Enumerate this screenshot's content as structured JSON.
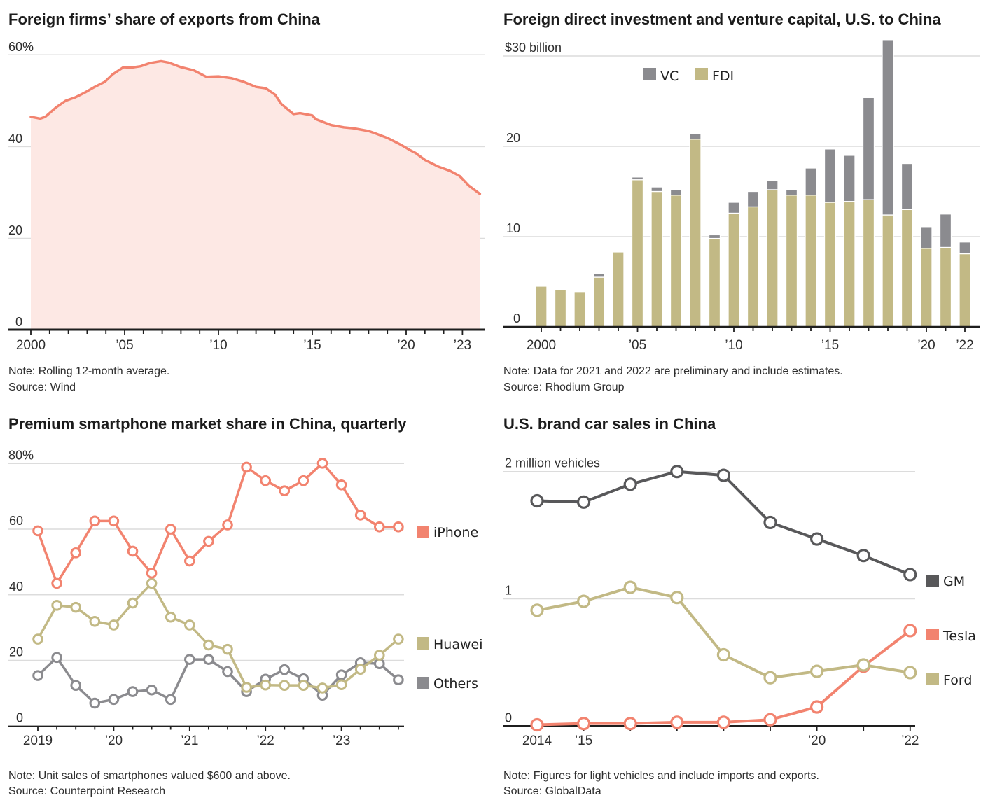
{
  "chart_data": [
    {
      "type": "area",
      "title": "Foreign firms’ share of exports from China",
      "note": "Note: Rolling 12-month average.",
      "source": "Source: Wind",
      "xlabel": "",
      "ylabel": "",
      "xlim": [
        2000,
        2024
      ],
      "ylim": [
        0,
        60
      ],
      "grid": true,
      "yticks": [
        {
          "value": 60,
          "label": "60%"
        },
        {
          "value": 40,
          "label": "40"
        },
        {
          "value": 20,
          "label": "20"
        },
        {
          "value": 0,
          "label": "0"
        }
      ],
      "xticks": [
        {
          "value": 2000,
          "label": "2000"
        },
        {
          "value": 2005,
          "label": "’05"
        },
        {
          "value": 2010,
          "label": "’10"
        },
        {
          "value": 2015,
          "label": "’15"
        },
        {
          "value": 2020,
          "label": "’20"
        },
        {
          "value": 2023,
          "label": "’23"
        }
      ],
      "series": [
        {
          "name": "Foreign firms’ share of exports",
          "color": "#f2836f",
          "fill": "#fde8e4",
          "points": [
            [
              2000.0,
              46.5
            ],
            [
              2000.5,
              46.1
            ],
            [
              2000.77,
              46.5
            ],
            [
              2001.36,
              48.6
            ],
            [
              2001.86,
              50.0
            ],
            [
              2002.35,
              50.7
            ],
            [
              2002.85,
              51.7
            ],
            [
              2003.36,
              52.9
            ],
            [
              2003.94,
              54.1
            ],
            [
              2004.35,
              55.7
            ],
            [
              2004.94,
              57.3
            ],
            [
              2005.35,
              57.2
            ],
            [
              2005.85,
              57.5
            ],
            [
              2006.35,
              58.2
            ],
            [
              2006.94,
              58.6
            ],
            [
              2007.35,
              58.3
            ],
            [
              2008.0,
              57.3
            ],
            [
              2008.69,
              56.6
            ],
            [
              2009.35,
              55.2
            ],
            [
              2010.0,
              55.3
            ],
            [
              2010.69,
              54.9
            ],
            [
              2011.35,
              54.1
            ],
            [
              2012.0,
              53.0
            ],
            [
              2012.52,
              52.7
            ],
            [
              2013.02,
              51.3
            ],
            [
              2013.35,
              49.3
            ],
            [
              2014.0,
              47.1
            ],
            [
              2014.35,
              47.3
            ],
            [
              2015.0,
              46.8
            ],
            [
              2015.18,
              46.0
            ],
            [
              2016.0,
              44.7
            ],
            [
              2016.68,
              44.2
            ],
            [
              2017.18,
              44.0
            ],
            [
              2018.0,
              43.4
            ],
            [
              2018.35,
              42.9
            ],
            [
              2019.0,
              41.9
            ],
            [
              2019.68,
              40.5
            ],
            [
              2020.18,
              39.3
            ],
            [
              2020.51,
              38.6
            ],
            [
              2021.0,
              37.1
            ],
            [
              2021.68,
              35.7
            ],
            [
              2022.35,
              34.7
            ],
            [
              2022.85,
              33.6
            ],
            [
              2023.34,
              31.5
            ],
            [
              2023.93,
              29.7
            ]
          ]
        }
      ]
    },
    {
      "type": "bar",
      "stacked": true,
      "title": "Foreign direct investment and venture capital, U.S. to China",
      "note": "Note: Data for 2021 and 2022 are preliminary and include estimates.",
      "source": "Source: Rhodium Group",
      "xlabel": "",
      "ylabel": "",
      "ylim": [
        0,
        30
      ],
      "grid": true,
      "categories": [
        2000,
        2001,
        2002,
        2003,
        2004,
        2005,
        2006,
        2007,
        2008,
        2009,
        2010,
        2011,
        2012,
        2013,
        2014,
        2015,
        2016,
        2017,
        2018,
        2019,
        2020,
        2021,
        2022
      ],
      "yticks": [
        {
          "value": 30,
          "label": "$30 billion"
        },
        {
          "value": 20,
          "label": "20"
        },
        {
          "value": 10,
          "label": "10"
        },
        {
          "value": 0,
          "label": "0"
        }
      ],
      "xticks": [
        {
          "value": 2000,
          "label": "2000"
        },
        {
          "value": 2005,
          "label": "’05"
        },
        {
          "value": 2010,
          "label": "’10"
        },
        {
          "value": 2015,
          "label": "’15"
        },
        {
          "value": 2020,
          "label": "’20"
        },
        {
          "value": 2022,
          "label": "’22"
        }
      ],
      "legend_position": "top-center",
      "legend": [
        {
          "name": "VC",
          "color": "#8b8b8f"
        },
        {
          "name": "FDI",
          "color": "#c2b985"
        }
      ],
      "series": [
        {
          "name": "FDI",
          "color": "#c2b985",
          "values": [
            4.5,
            4.1,
            3.9,
            5.5,
            8.3,
            16.3,
            15.0,
            14.6,
            20.8,
            9.8,
            12.6,
            13.3,
            15.2,
            14.6,
            14.6,
            13.8,
            13.9,
            14.1,
            12.4,
            13.0,
            8.7,
            8.8,
            8.1
          ]
        },
        {
          "name": "VC",
          "color": "#8b8b8f",
          "values": [
            0,
            0,
            0,
            0.4,
            0,
            0.3,
            0.5,
            0.6,
            0.6,
            0.4,
            1.2,
            1.7,
            1.0,
            0.6,
            3.0,
            5.9,
            5.1,
            11.3,
            19.4,
            5.1,
            2.4,
            3.7,
            1.3
          ]
        }
      ]
    },
    {
      "type": "line",
      "title": "Premium smartphone market share in China, quarterly",
      "note": "Note: Unit sales of smartphones valued $600 and above.",
      "source": "Source: Counterpoint Research",
      "xlabel": "",
      "ylabel": "",
      "ylim": [
        0,
        80
      ],
      "grid": true,
      "categories": [
        "2019 Q1",
        "2019 Q2",
        "2019 Q3",
        "2019 Q4",
        "2020 Q1",
        "2020 Q2",
        "2020 Q3",
        "2020 Q4",
        "2021 Q1",
        "2021 Q2",
        "2021 Q3",
        "2021 Q4",
        "2022 Q1",
        "2022 Q2",
        "2022 Q3",
        "2022 Q4",
        "2023 Q1",
        "2023 Q2",
        "2023 Q3",
        "2023 Q4"
      ],
      "yticks": [
        {
          "value": 80,
          "label": "80%"
        },
        {
          "value": 60,
          "label": "60"
        },
        {
          "value": 40,
          "label": "40"
        },
        {
          "value": 20,
          "label": "20"
        },
        {
          "value": 0,
          "label": "0"
        }
      ],
      "xticks": [
        {
          "value": "2019 Q1",
          "label": "2019"
        },
        {
          "value": "2020 Q1",
          "label": "’20"
        },
        {
          "value": "2021 Q1",
          "label": "’21"
        },
        {
          "value": "2022 Q1",
          "label": "’22"
        },
        {
          "value": "2023 Q1",
          "label": "’23"
        }
      ],
      "legend_position": "right",
      "series": [
        {
          "name": "iPhone",
          "color": "#f2836f",
          "values": [
            59.5,
            43.5,
            52.8,
            62.5,
            62.5,
            53.3,
            46.6,
            60.0,
            50.3,
            56.3,
            61.3,
            78.9,
            74.8,
            71.7,
            74.8,
            80.1,
            73.5,
            64.3,
            60.7,
            60.7
          ]
        },
        {
          "name": "Huawei",
          "color": "#c2b985",
          "values": [
            26.5,
            36.8,
            36.2,
            31.9,
            30.8,
            37.5,
            43.5,
            33.2,
            30.8,
            24.7,
            23.4,
            11.8,
            12.5,
            12.4,
            12.4,
            11.6,
            12.6,
            17.3,
            21.6,
            26.5
          ]
        },
        {
          "name": "Others",
          "color": "#8b8b8f",
          "values": [
            15.4,
            20.9,
            12.4,
            7.0,
            8.1,
            10.5,
            11.0,
            8.1,
            20.3,
            20.3,
            16.6,
            10.5,
            14.3,
            17.2,
            14.4,
            9.4,
            15.6,
            19.3,
            19.0,
            14.1
          ]
        }
      ]
    },
    {
      "type": "line",
      "title": "U.S. brand car sales in China",
      "note": "Note: Figures for light vehicles and include imports and exports.",
      "source": "Source: GlobalData",
      "xlabel": "",
      "ylabel": "",
      "ylim": [
        0,
        2
      ],
      "grid": true,
      "x": [
        2014,
        2015,
        2016,
        2017,
        2018,
        2019,
        2020,
        2021,
        2022
      ],
      "yticks": [
        {
          "value": 2,
          "label": "2 million vehicles"
        },
        {
          "value": 1,
          "label": "1"
        },
        {
          "value": 0,
          "label": "0"
        }
      ],
      "xticks": [
        {
          "value": 2014,
          "label": "2014"
        },
        {
          "value": 2015,
          "label": "’15"
        },
        {
          "value": 2020,
          "label": "’20"
        },
        {
          "value": 2022,
          "label": "’22"
        }
      ],
      "legend_position": "right",
      "series": [
        {
          "name": "GM",
          "color": "#58585a",
          "values": [
            1.77,
            1.76,
            1.9,
            2.0,
            1.97,
            1.6,
            1.47,
            1.34,
            1.19
          ]
        },
        {
          "name": "Tesla",
          "color": "#f2836f",
          "values": [
            0.01,
            0.02,
            0.02,
            0.03,
            0.03,
            0.05,
            0.15,
            0.47,
            0.75
          ]
        },
        {
          "name": "Ford",
          "color": "#c2b985",
          "values": [
            0.91,
            0.98,
            1.09,
            1.01,
            0.56,
            0.38,
            0.43,
            0.48,
            0.42
          ]
        }
      ]
    }
  ]
}
